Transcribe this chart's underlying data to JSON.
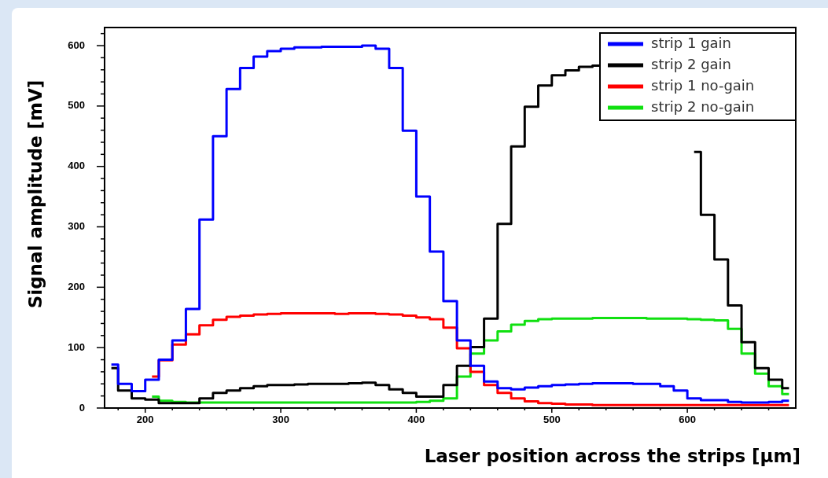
{
  "chart_data": {
    "type": "step",
    "xlabel": "Laser position across the strips [μm]",
    "ylabel": "Signal amplitude [mV]",
    "x": [
      175,
      185,
      195,
      205,
      215,
      225,
      235,
      245,
      255,
      265,
      275,
      285,
      295,
      305,
      315,
      325,
      335,
      345,
      355,
      365,
      375,
      385,
      395,
      405,
      415,
      425,
      435,
      445,
      455,
      465,
      475,
      485,
      495,
      505,
      515,
      525,
      535,
      545,
      555,
      565,
      575,
      585,
      595,
      605,
      615,
      625,
      635,
      645,
      655,
      665,
      675
    ],
    "series": [
      {
        "name": "strip 1 gain",
        "color": "#0000ff",
        "values": [
          72,
          40,
          28,
          47,
          80,
          112,
          164,
          312,
          450,
          528,
          563,
          582,
          591,
          595,
          597,
          597,
          598,
          598,
          598,
          600,
          595,
          563,
          459,
          350,
          259,
          177,
          112,
          70,
          44,
          33,
          31,
          34,
          36,
          38,
          39,
          40,
          41,
          41,
          41,
          40,
          40,
          36,
          29,
          16,
          13,
          13,
          10,
          9,
          9,
          10,
          12
        ]
      },
      {
        "name": "strip 2 gain",
        "color": "#000000",
        "values": [
          66,
          29,
          16,
          14,
          8,
          8,
          8,
          16,
          25,
          29,
          33,
          36,
          38,
          38,
          39,
          40,
          40,
          40,
          41,
          42,
          38,
          31,
          25,
          19,
          19,
          38,
          70,
          101,
          148,
          305,
          433,
          499,
          534,
          551,
          559,
          565,
          567,
          null,
          null,
          null,
          null,
          null,
          null,
          424,
          320,
          246,
          170,
          109,
          66,
          47,
          33
        ]
      },
      {
        "name": "strip 1 no-gain",
        "color": "#ff0000",
        "values": [
          null,
          null,
          null,
          52,
          79,
          105,
          122,
          137,
          146,
          151,
          153,
          155,
          156,
          157,
          157,
          157,
          157,
          156,
          157,
          157,
          156,
          155,
          153,
          150,
          147,
          133,
          99,
          60,
          38,
          25,
          16,
          11,
          8,
          7,
          6,
          6,
          5,
          5,
          5,
          5,
          5,
          5,
          5,
          5,
          5,
          5,
          5,
          5,
          5,
          5,
          5
        ]
      },
      {
        "name": "strip 2 no-gain",
        "color": "#10e010",
        "values": [
          null,
          null,
          null,
          19,
          12,
          10,
          9,
          9,
          9,
          9,
          9,
          9,
          9,
          9,
          9,
          9,
          9,
          9,
          9,
          9,
          9,
          9,
          9,
          10,
          12,
          16,
          52,
          90,
          112,
          127,
          138,
          144,
          147,
          148,
          148,
          148,
          149,
          149,
          149,
          149,
          148,
          148,
          148,
          147,
          146,
          145,
          131,
          90,
          57,
          36,
          23
        ]
      }
    ],
    "xlim": [
      170,
      680
    ],
    "xticks": [
      {
        "value": 180,
        "label": null
      },
      200,
      {
        "value": 220,
        "label": null
      },
      {
        "value": 240,
        "label": null
      },
      {
        "value": 260,
        "label": null
      },
      {
        "value": 280,
        "label": null
      },
      300,
      {
        "value": 320,
        "label": null
      },
      {
        "value": 340,
        "label": null
      },
      {
        "value": 360,
        "label": null
      },
      {
        "value": 380,
        "label": null
      },
      400,
      {
        "value": 420,
        "label": null
      },
      {
        "value": 440,
        "label": null
      },
      {
        "value": 460,
        "label": null
      },
      {
        "value": 480,
        "label": null
      },
      500,
      {
        "value": 520,
        "label": null
      },
      {
        "value": 540,
        "label": null
      },
      {
        "value": 560,
        "label": null
      },
      {
        "value": 580,
        "label": null
      },
      600,
      {
        "value": 620,
        "label": null
      },
      {
        "value": 640,
        "label": null
      },
      {
        "value": 660,
        "label": null
      }
    ],
    "ylim": [
      0,
      630
    ],
    "yticks": [
      0,
      {
        "value": 20,
        "label": null
      },
      {
        "value": 40,
        "label": null
      },
      {
        "value": 60,
        "label": null
      },
      {
        "value": 80,
        "label": null
      },
      100,
      {
        "value": 120,
        "label": null
      },
      {
        "value": 140,
        "label": null
      },
      {
        "value": 160,
        "label": null
      },
      {
        "value": 180,
        "label": null
      },
      200,
      {
        "value": 220,
        "label": null
      },
      {
        "value": 240,
        "label": null
      },
      {
        "value": 260,
        "label": null
      },
      {
        "value": 280,
        "label": null
      },
      300,
      {
        "value": 320,
        "label": null
      },
      {
        "value": 340,
        "label": null
      },
      {
        "value": 360,
        "label": null
      },
      {
        "value": 380,
        "label": null
      },
      400,
      {
        "value": 420,
        "label": null
      },
      {
        "value": 440,
        "label": null
      },
      {
        "value": 460,
        "label": null
      },
      {
        "value": 480,
        "label": null
      },
      500,
      {
        "value": 520,
        "label": null
      },
      {
        "value": 540,
        "label": null
      },
      {
        "value": 560,
        "label": null
      },
      {
        "value": 580,
        "label": null
      },
      600,
      {
        "value": 620,
        "label": null
      }
    ],
    "grid": false,
    "legend": "top right"
  }
}
